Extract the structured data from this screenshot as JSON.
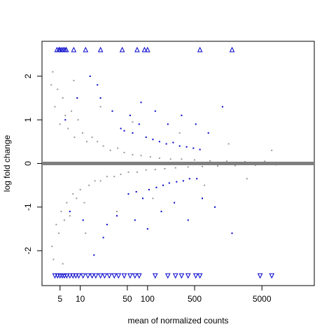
{
  "chart_data": {
    "type": "scatter",
    "title": "",
    "xlabel": "mean of normalized counts",
    "ylabel": "log fold change",
    "x_scale": "log",
    "xlim": [
      2.7,
      30000
    ],
    "ylim": [
      -2.8,
      2.8
    ],
    "x_ticks": [
      5,
      10,
      50,
      100,
      500,
      5000
    ],
    "x_tick_labels": [
      "5",
      "10",
      "50",
      "100",
      "500",
      "5000"
    ],
    "y_ticks": [
      -2,
      -1,
      0,
      1,
      2
    ],
    "y_tick_labels": [
      "-2",
      "-1",
      "0",
      "1",
      "2"
    ],
    "reference_line": {
      "y": 0,
      "color": "#7f7f7f"
    },
    "grid": false,
    "legend": "none",
    "colors": {
      "not_significant": "#999999",
      "significant": "#0000cc",
      "reference_line": "#7f7f7f",
      "frame": "#000000"
    },
    "series": [
      {
        "key": "not_significant",
        "points": [
          [
            3.7,
            1.8
          ],
          [
            3.8,
            -1.9
          ],
          [
            3.9,
            2.1
          ],
          [
            4.0,
            -2.2
          ],
          [
            4.2,
            1.3
          ],
          [
            4.4,
            -1.4
          ],
          [
            4.6,
            1.7
          ],
          [
            4.8,
            -1.6
          ],
          [
            5.0,
            0.9
          ],
          [
            5.2,
            -1.1
          ],
          [
            5.5,
            1.5
          ],
          [
            5.8,
            -1.3
          ],
          [
            6.0,
            1.1
          ],
          [
            6.3,
            -0.9
          ],
          [
            6.6,
            0.8
          ],
          [
            7.0,
            -1.2
          ],
          [
            7.4,
            1.2
          ],
          [
            7.8,
            -0.7
          ],
          [
            8.2,
            0.6
          ],
          [
            8.8,
            -0.8
          ],
          [
            9.3,
            1.0
          ],
          [
            10.0,
            -0.6
          ],
          [
            10.8,
            0.7
          ],
          [
            11.5,
            -0.9
          ],
          [
            12.5,
            0.5
          ],
          [
            13.5,
            -0.5
          ],
          [
            15.0,
            0.6
          ],
          [
            16.5,
            -0.4
          ],
          [
            18.0,
            0.5
          ],
          [
            20.0,
            -0.4
          ],
          [
            22.0,
            0.4
          ],
          [
            25.0,
            -0.3
          ],
          [
            28.0,
            0.3
          ],
          [
            32.0,
            -0.3
          ],
          [
            36.0,
            0.35
          ],
          [
            40.0,
            -0.25
          ],
          [
            45.0,
            0.25
          ],
          [
            52.0,
            -0.2
          ],
          [
            60.0,
            0.2
          ],
          [
            70.0,
            -0.2
          ],
          [
            80.0,
            0.18
          ],
          [
            95.0,
            -0.15
          ],
          [
            110.0,
            0.15
          ],
          [
            130.0,
            -0.14
          ],
          [
            150.0,
            0.12
          ],
          [
            180.0,
            -0.12
          ],
          [
            220.0,
            0.1
          ],
          [
            260.0,
            -0.1
          ],
          [
            320.0,
            0.1
          ],
          [
            400.0,
            -0.08
          ],
          [
            500.0,
            0.08
          ],
          [
            650.0,
            -0.07
          ],
          [
            850.0,
            0.06
          ],
          [
            1100.0,
            -0.06
          ],
          [
            1500.0,
            0.05
          ],
          [
            2000.0,
            -0.05
          ],
          [
            2800.0,
            0.04
          ],
          [
            4000.0,
            -0.04
          ],
          [
            5500.0,
            0.05
          ],
          [
            8000.0,
            -0.03
          ],
          [
            5.5,
            -2.3
          ],
          [
            8.0,
            1.9
          ],
          [
            12.0,
            -1.6
          ],
          [
            20.0,
            1.3
          ],
          [
            35.0,
            -1.1
          ],
          [
            60.0,
            0.95
          ],
          [
            120.0,
            -0.8
          ],
          [
            300.0,
            0.7
          ],
          [
            700.0,
            -0.5
          ],
          [
            1600.0,
            0.45
          ],
          [
            3000.0,
            -0.35
          ],
          [
            7000.0,
            0.3
          ]
        ]
      },
      {
        "key": "significant",
        "points": [
          [
            40,
            0.8
          ],
          [
            45,
            0.75
          ],
          [
            52,
            -0.7
          ],
          [
            60,
            0.7
          ],
          [
            68,
            -0.65
          ],
          [
            75,
            0.9
          ],
          [
            85,
            -0.8
          ],
          [
            95,
            0.6
          ],
          [
            105,
            -0.6
          ],
          [
            120,
            0.55
          ],
          [
            135,
            -0.55
          ],
          [
            150,
            0.5
          ],
          [
            170,
            -0.5
          ],
          [
            190,
            0.45
          ],
          [
            210,
            -0.45
          ],
          [
            240,
            0.48
          ],
          [
            270,
            -0.42
          ],
          [
            300,
            0.4
          ],
          [
            340,
            -0.4
          ],
          [
            380,
            0.38
          ],
          [
            420,
            -0.35
          ],
          [
            480,
            0.35
          ],
          [
            540,
            -0.35
          ],
          [
            600,
            0.32
          ],
          [
            20,
            1.5
          ],
          [
            25,
            -1.4
          ],
          [
            30,
            1.2
          ],
          [
            35,
            -1.2
          ],
          [
            18,
            1.8
          ],
          [
            22,
            -1.7
          ],
          [
            14,
            2.0
          ],
          [
            16,
            -2.1
          ],
          [
            55,
            1.1
          ],
          [
            65,
            -1.3
          ],
          [
            80,
            1.4
          ],
          [
            100,
            -1.5
          ],
          [
            130,
            1.2
          ],
          [
            160,
            -1.1
          ],
          [
            200,
            0.9
          ],
          [
            250,
            -0.9
          ],
          [
            320,
            1.1
          ],
          [
            400,
            -1.3
          ],
          [
            520,
            0.9
          ],
          [
            650,
            -0.8
          ],
          [
            800,
            0.7
          ],
          [
            1000,
            -1.0
          ],
          [
            1300,
            1.3
          ],
          [
            1800,
            -1.6
          ],
          [
            6,
            1.0
          ],
          [
            7,
            -1.1
          ],
          [
            9,
            1.5
          ],
          [
            11,
            -1.3
          ]
        ]
      }
    ],
    "clipped_markers": {
      "top": [
        4.5,
        4.8,
        5.0,
        5.3,
        5.6,
        5.9,
        6.2,
        8.0,
        12.0,
        20.0,
        42.0,
        70.0,
        90.0,
        100.0,
        600.0,
        1800.0
      ],
      "bottom": [
        4.2,
        4.6,
        5.0,
        5.4,
        5.8,
        6.3,
        7.0,
        7.8,
        8.6,
        9.5,
        11.0,
        13.0,
        15.0,
        17.0,
        20.0,
        23.0,
        27.0,
        32.0,
        37.0,
        45.0,
        55.0,
        65.0,
        75.0,
        130.0,
        200.0,
        260.0,
        320.0,
        400.0,
        520.0,
        600.0,
        4700.0,
        7000.0
      ]
    }
  }
}
